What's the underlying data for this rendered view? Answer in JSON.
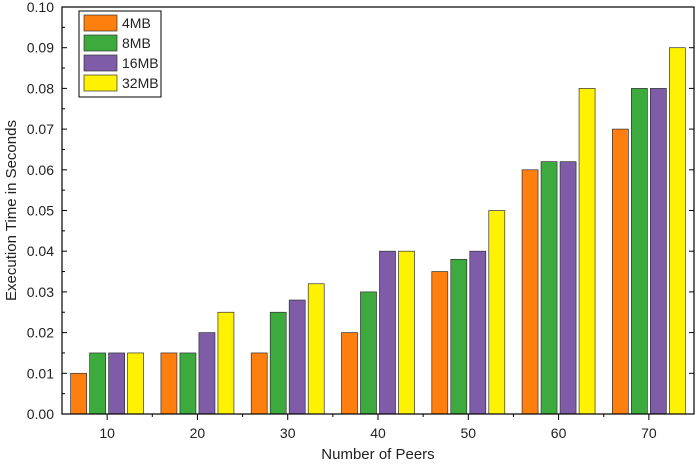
{
  "chart_data": {
    "type": "bar",
    "title": "",
    "xlabel": "Number of Peers",
    "ylabel": "Execution Time in Seconds",
    "categories": [
      "10",
      "20",
      "30",
      "40",
      "50",
      "60",
      "70"
    ],
    "series": [
      {
        "name": "4MB",
        "color": "#FF7F0E",
        "values": [
          0.01,
          0.015,
          0.015,
          0.02,
          0.035,
          0.06,
          0.07
        ]
      },
      {
        "name": "8MB",
        "color": "#3DAA3D",
        "values": [
          0.015,
          0.015,
          0.025,
          0.03,
          0.038,
          0.062,
          0.08
        ]
      },
      {
        "name": "16MB",
        "color": "#7E5CA8",
        "values": [
          0.015,
          0.02,
          0.028,
          0.04,
          0.04,
          0.062,
          0.08
        ]
      },
      {
        "name": "32MB",
        "color": "#FFF200",
        "values": [
          0.015,
          0.025,
          0.032,
          0.04,
          0.05,
          0.08,
          0.09
        ]
      }
    ],
    "ylim": [
      0,
      0.1
    ],
    "yticks": [
      "0.00",
      "0.01",
      "0.02",
      "0.03",
      "0.04",
      "0.05",
      "0.06",
      "0.07",
      "0.08",
      "0.09",
      "0.10"
    ],
    "grid": false,
    "legend_position": "top-left"
  }
}
